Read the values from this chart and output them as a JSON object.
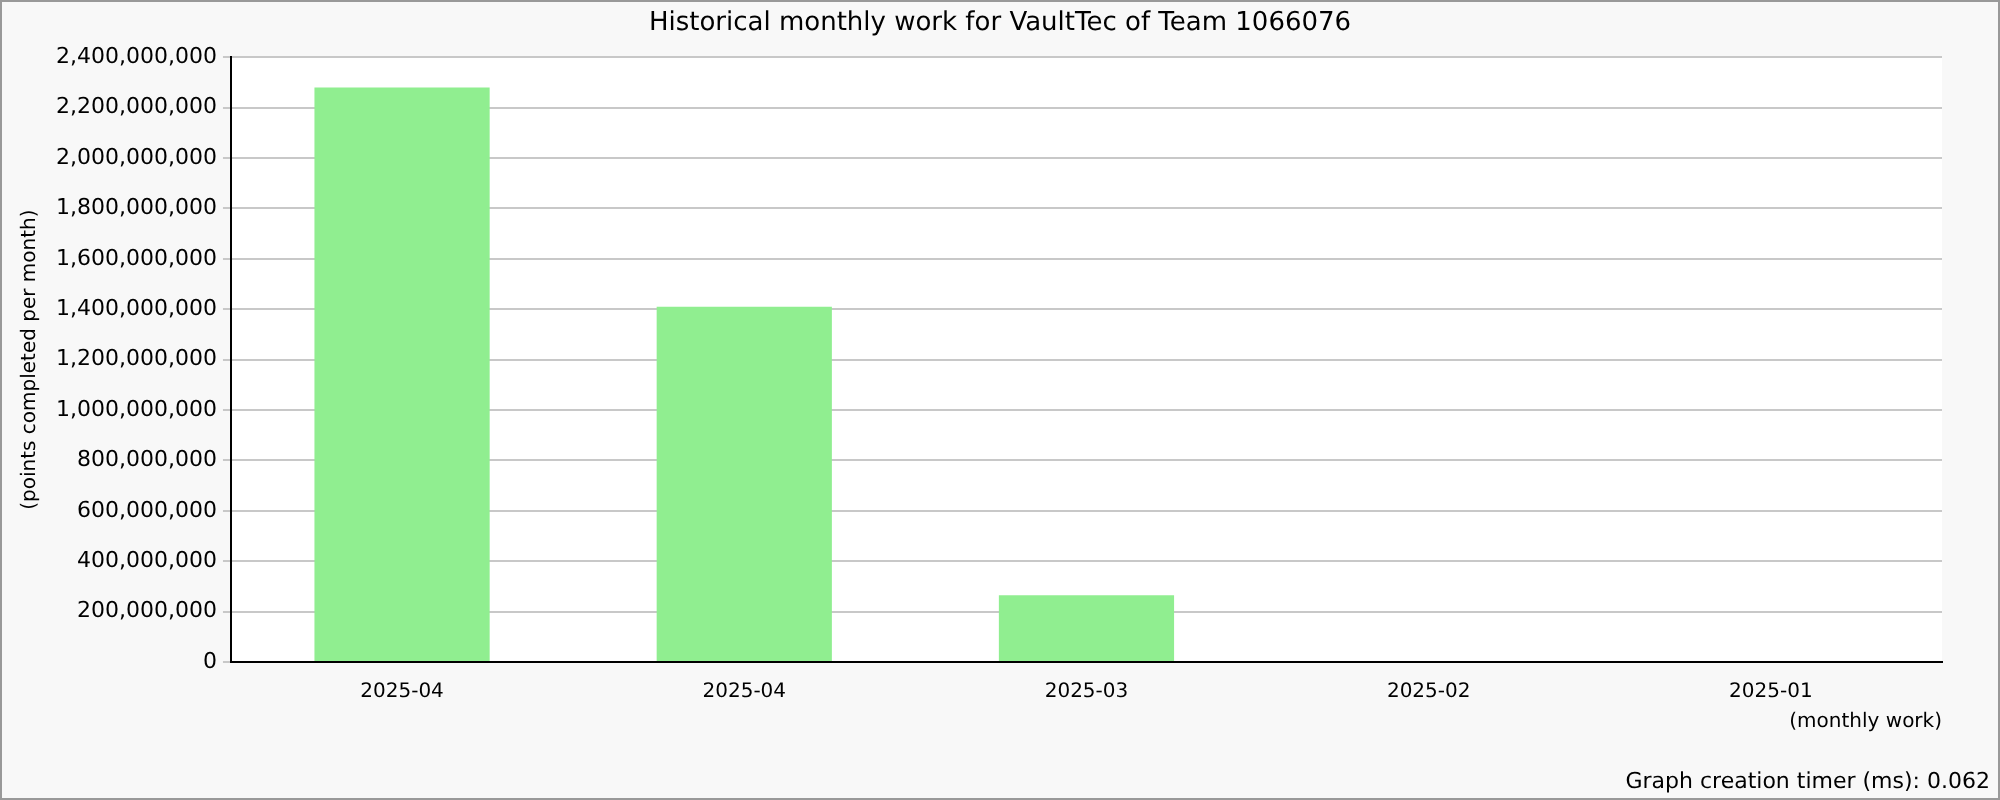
{
  "chart_data": {
    "type": "bar",
    "title": "Historical monthly work for VaultTec of Team 1066076",
    "xlabel": "(monthly work)",
    "ylabel": "(points completed per month)",
    "categories": [
      "2025-04",
      "2025-04",
      "2025-03",
      "2025-02",
      "2025-01"
    ],
    "values": [
      2280000000,
      1410000000,
      265000000,
      0,
      0
    ],
    "color": "#90ee90",
    "ylim": [
      0,
      2400000000
    ],
    "yticks": [
      0,
      {
        "value": 200000000,
        "label": "200,000,000"
      },
      {
        "value": 400000000,
        "label": "400,000,000"
      },
      {
        "value": 600000000,
        "label": "600,000,000"
      },
      {
        "value": 800000000,
        "label": "800,000,000"
      },
      {
        "value": 1000000000,
        "label": "1,000,000,000"
      },
      {
        "value": 1200000000,
        "label": "1,200,000,000"
      },
      {
        "value": 1400000000,
        "label": "1,400,000,000"
      },
      {
        "value": 1600000000,
        "label": "1,600,000,000"
      },
      {
        "value": 1800000000,
        "label": "1,800,000,000"
      },
      {
        "value": 2000000000,
        "label": "2,000,000,000"
      },
      {
        "value": 2200000000,
        "label": "2,200,000,000"
      },
      {
        "value": 2400000000,
        "label": "2,400,000,000"
      }
    ],
    "grid": "y",
    "legend": false,
    "annotations": [
      "Graph creation timer (ms): 0.062"
    ]
  }
}
